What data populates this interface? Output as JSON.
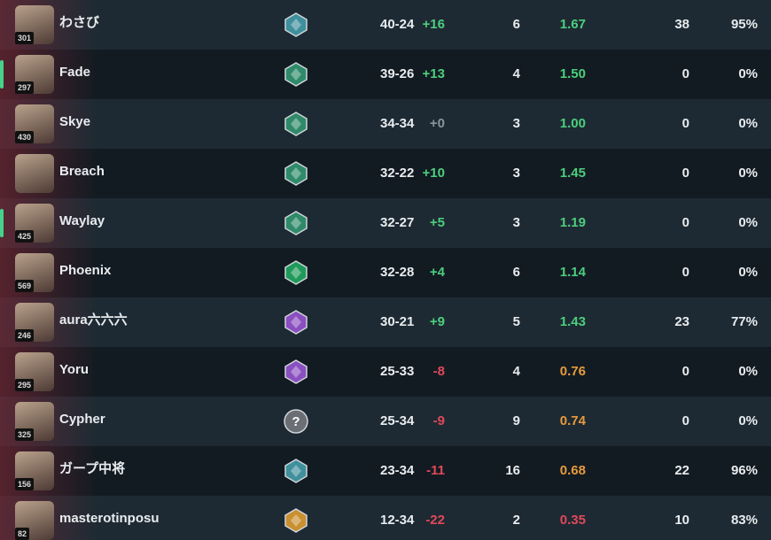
{
  "table": {
    "rows": [
      {
        "level": "301",
        "name": "わさび",
        "kd": "40-24",
        "diff": "+16",
        "c1": "6",
        "ratio": "1.67",
        "c2": "38",
        "pct": "95%",
        "rank_color": "#3f8f9c"
      },
      {
        "level": "297",
        "name": "Fade",
        "kd": "39-26",
        "diff": "+13",
        "c1": "4",
        "ratio": "1.50",
        "c2": "0",
        "pct": "0%",
        "rank_color": "#2f8a6a",
        "highlight": true
      },
      {
        "level": "430",
        "name": "Skye",
        "kd": "34-34",
        "diff": "+0",
        "c1": "3",
        "ratio": "1.00",
        "c2": "0",
        "pct": "0%",
        "rank_color": "#2f8a6a"
      },
      {
        "name": "Breach",
        "kd": "32-22",
        "diff": "+10",
        "c1": "3",
        "ratio": "1.45",
        "c2": "0",
        "pct": "0%",
        "rank_color": "#2f8a6a"
      },
      {
        "level": "425",
        "name": "Waylay",
        "kd": "32-27",
        "diff": "+5",
        "c1": "3",
        "ratio": "1.19",
        "c2": "0",
        "pct": "0%",
        "rank_color": "#2f8a6a",
        "highlight": true
      },
      {
        "level": "569",
        "name": "Phoenix",
        "kd": "32-28",
        "diff": "+4",
        "c1": "6",
        "ratio": "1.14",
        "c2": "0",
        "pct": "0%",
        "rank_color": "#1f9a5a"
      },
      {
        "level": "246",
        "name": "aura六六六",
        "kd": "30-21",
        "diff": "+9",
        "c1": "5",
        "ratio": "1.43",
        "c2": "23",
        "pct": "77%",
        "rank_color": "#8a4fc0"
      },
      {
        "level": "295",
        "name": "Yoru",
        "kd": "25-33",
        "diff": "-8",
        "c1": "4",
        "ratio": "0.76",
        "c2": "0",
        "pct": "0%",
        "rank_color": "#8a4fc0"
      },
      {
        "level": "325",
        "name": "Cypher",
        "kd": "25-34",
        "diff": "-9",
        "c1": "9",
        "ratio": "0.74",
        "c2": "0",
        "pct": "0%",
        "rank_color": "#6b6f74",
        "rank_label": "?"
      },
      {
        "level": "156",
        "name": "ガープ中将",
        "kd": "23-34",
        "diff": "-11",
        "c1": "16",
        "ratio": "0.68",
        "c2": "22",
        "pct": "96%",
        "rank_color": "#3f8f9c"
      },
      {
        "level": "82",
        "name": "masterotinposu",
        "kd": "12-34",
        "diff": "-22",
        "c1": "2",
        "ratio": "0.35",
        "c2": "10",
        "pct": "83%",
        "rank_color": "#c99030"
      }
    ]
  }
}
